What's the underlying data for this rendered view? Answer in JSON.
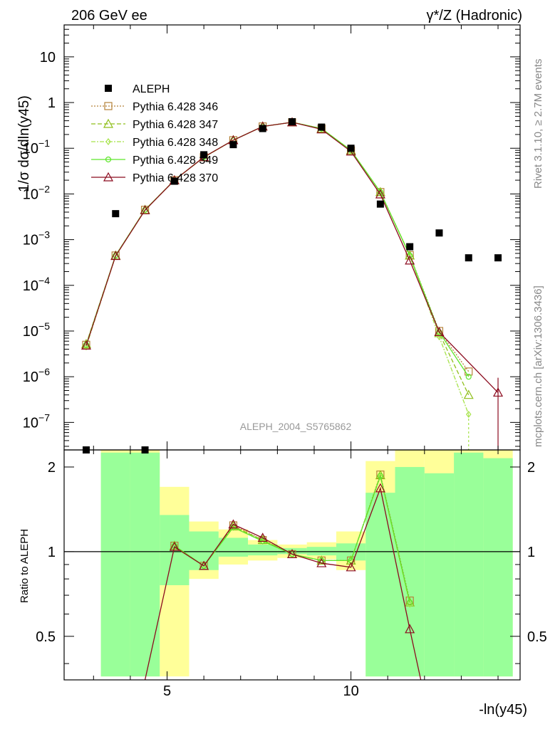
{
  "header": {
    "left": "206 GeV ee",
    "right": "γ*/Z (Hadronic)"
  },
  "side": {
    "rivet": "Rivet 3.1.10, ≥ 2.7M events",
    "mcplots": "mcplots.cern.ch [arXiv:1306.3436]"
  },
  "watermark": "ALEPH_2004_S5765862",
  "colors": {
    "data": "#000000",
    "p346": "#b5823a",
    "p347": "#8fbf1a",
    "p348": "#a6e34a",
    "p349": "#5ee62a",
    "p370": "#8b0a1e",
    "band_stat": "#99ff99",
    "band_total": "#ffff99"
  },
  "chart_data": {
    "type": "line",
    "ylabel": "1/σ dσ/dln(y45)",
    "xlabel": "-ln(y45)",
    "ratio_ylabel": "Ratio to ALEPH",
    "xlim": [
      2.2,
      14.6
    ],
    "ylim": [
      2.5e-08,
      50
    ],
    "yscale": "log",
    "ratio_ylim": [
      0.35,
      2.3
    ],
    "ratio_yscale": "log",
    "x_ticks": [
      "5",
      "10"
    ],
    "y_ticks": [
      "10^-7",
      "10^-6",
      "10^-5",
      "10^-4",
      "10^-3",
      "10^-2",
      "10^-1",
      "1",
      "10"
    ],
    "ratio_ticks": [
      "0.5",
      "1",
      "2"
    ],
    "legend_position": "top-left",
    "bin_edges": [
      2.4,
      3.2,
      4.0,
      4.8,
      5.6,
      6.4,
      7.2,
      8.0,
      8.8,
      9.6,
      10.4,
      11.2,
      12.0,
      12.8,
      13.6,
      14.4
    ],
    "data": {
      "name": "ALEPH",
      "x": [
        2.8,
        3.6,
        4.4,
        5.2,
        6.0,
        6.8,
        7.6,
        8.4,
        9.2,
        10.0,
        10.8,
        11.6,
        12.4,
        13.2,
        14.0
      ],
      "y": [
        2.5e-08,
        0.0037,
        2.5e-08,
        0.019,
        0.072,
        0.12,
        0.27,
        0.38,
        0.29,
        0.1,
        0.006,
        0.0007,
        0.0014,
        0.0004,
        0.0004
      ]
    },
    "series": [
      {
        "name": "Pythia 6.428 346",
        "x": [
          2.8,
          3.6,
          4.4,
          5.2,
          6.0,
          6.8,
          7.6,
          8.4,
          9.2,
          10.0,
          10.8,
          11.6,
          12.4,
          13.2
        ],
        "y": [
          5e-06,
          0.00045,
          0.0045,
          0.02,
          0.064,
          0.15,
          0.3,
          0.37,
          0.27,
          0.09,
          0.011,
          0.00046,
          1e-05,
          1.3e-06
        ],
        "ratio_x": [
          5.2,
          6.0,
          6.8,
          7.6,
          8.4,
          9.2,
          10.0,
          10.8,
          11.6
        ],
        "ratio": [
          1.05,
          0.89,
          1.24,
          1.1,
          0.98,
          0.93,
          0.93,
          1.88,
          0.67
        ]
      },
      {
        "name": "Pythia 6.428 347",
        "x": [
          2.8,
          3.6,
          4.4,
          5.2,
          6.0,
          6.8,
          7.6,
          8.4,
          9.2,
          10.0,
          10.8,
          11.6,
          12.4,
          13.2
        ],
        "y": [
          5.2e-06,
          0.00045,
          0.0045,
          0.02,
          0.064,
          0.15,
          0.3,
          0.37,
          0.27,
          0.09,
          0.011,
          0.00045,
          9e-06,
          4e-07
        ],
        "ratio_x": [
          5.2,
          6.0,
          6.8,
          7.6,
          8.4,
          9.2,
          10.0,
          10.8,
          11.6
        ],
        "ratio": [
          1.05,
          0.89,
          1.23,
          1.1,
          0.98,
          0.93,
          0.93,
          1.87,
          0.66
        ]
      },
      {
        "name": "Pythia 6.428 348",
        "x": [
          2.8,
          3.6,
          4.4,
          5.2,
          6.0,
          6.8,
          7.6,
          8.4,
          9.2,
          10.0,
          10.8,
          11.6,
          12.4,
          13.2
        ],
        "y": [
          4.5e-06,
          0.00044,
          0.0044,
          0.02,
          0.063,
          0.15,
          0.3,
          0.37,
          0.27,
          0.09,
          0.011,
          0.00044,
          7.5e-06,
          1.5e-07
        ],
        "ratio_x": [
          5.2,
          6.0,
          6.8,
          7.6,
          8.4,
          9.2,
          10.0,
          10.8,
          11.6
        ],
        "ratio": [
          1.04,
          0.89,
          1.22,
          1.09,
          0.98,
          0.93,
          0.93,
          1.85,
          0.65
        ]
      },
      {
        "name": "Pythia 6.428 349",
        "x": [
          2.8,
          3.6,
          4.4,
          5.2,
          6.0,
          6.8,
          7.6,
          8.4,
          9.2,
          10.0,
          10.8,
          11.6,
          12.4,
          13.2
        ],
        "y": [
          5e-06,
          0.00045,
          0.0045,
          0.02,
          0.064,
          0.15,
          0.3,
          0.37,
          0.27,
          0.09,
          0.011,
          0.00045,
          9.5e-06,
          1e-06
        ],
        "ratio_x": [
          5.2,
          6.0,
          6.8,
          7.6,
          8.4,
          9.2,
          10.0,
          10.8,
          11.6
        ],
        "ratio": [
          1.05,
          0.89,
          1.22,
          1.09,
          0.98,
          0.93,
          0.93,
          1.86,
          0.66
        ]
      },
      {
        "name": "Pythia 6.428 370",
        "x": [
          2.8,
          3.6,
          4.4,
          5.2,
          6.0,
          6.8,
          7.6,
          8.4,
          9.2,
          10.0,
          10.8,
          11.6,
          12.4,
          14.0
        ],
        "y": [
          4.8e-06,
          0.00044,
          0.0044,
          0.02,
          0.064,
          0.15,
          0.3,
          0.37,
          0.26,
          0.085,
          0.0098,
          0.00035,
          9.5e-06,
          4.5e-07
        ],
        "ratio_x": [
          4.4,
          5.2,
          6.0,
          6.8,
          7.6,
          8.4,
          9.2,
          10.0,
          10.8,
          11.6,
          11.9
        ],
        "ratio": [
          0.2,
          1.04,
          0.89,
          1.25,
          1.12,
          0.98,
          0.91,
          0.88,
          1.68,
          0.53,
          0.2
        ]
      }
    ],
    "ratio_bands": {
      "stat": [
        [
          0,
          0
        ],
        [
          0.36,
          2.25
        ],
        [
          0.36,
          2.25
        ],
        [
          0.76,
          1.35
        ],
        [
          0.86,
          1.18
        ],
        [
          0.96,
          1.12
        ],
        [
          0.97,
          1.06
        ],
        [
          0.98,
          1.03
        ],
        [
          0.97,
          1.04
        ],
        [
          0.93,
          1.07
        ],
        [
          0.36,
          1.62
        ],
        [
          0.36,
          2.0
        ],
        [
          0.36,
          1.9
        ],
        [
          0.36,
          2.25
        ],
        [
          0.36,
          2.15
        ]
      ],
      "total": [
        [
          0,
          0
        ],
        [
          0.36,
          2.3
        ],
        [
          0.36,
          2.3
        ],
        [
          0.36,
          1.7
        ],
        [
          0.8,
          1.28
        ],
        [
          0.9,
          1.2
        ],
        [
          0.93,
          1.1
        ],
        [
          0.95,
          1.06
        ],
        [
          0.94,
          1.08
        ],
        [
          0.86,
          1.18
        ],
        [
          0.36,
          2.1
        ],
        [
          0.36,
          2.3
        ],
        [
          0.36,
          2.3
        ],
        [
          0.36,
          2.3
        ],
        [
          0.36,
          2.3
        ]
      ]
    }
  }
}
